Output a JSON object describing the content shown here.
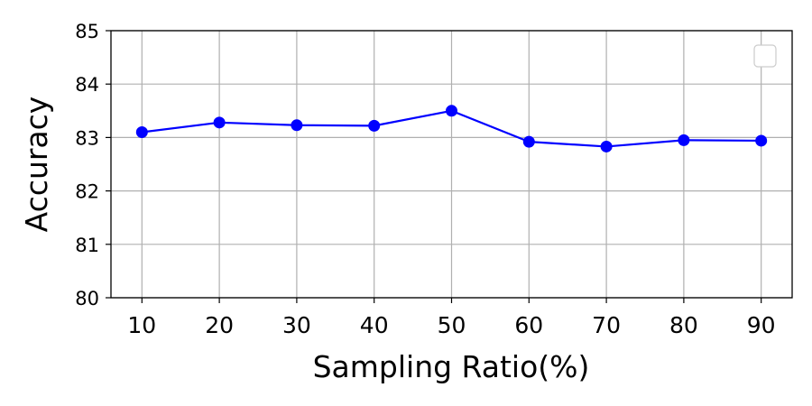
{
  "chart_data": {
    "type": "line",
    "title": "",
    "xlabel": "Sampling Ratio(%)",
    "ylabel": "Accuracy",
    "x": [
      10,
      20,
      30,
      40,
      50,
      60,
      70,
      80,
      90
    ],
    "series": [
      {
        "values": [
          83.1,
          83.28,
          83.23,
          83.22,
          83.5,
          82.92,
          82.83,
          82.95,
          82.94
        ],
        "color": "#0000ff",
        "marker": "circle"
      }
    ],
    "xlim": [
      6,
      94
    ],
    "ylim": [
      80,
      85
    ],
    "xticks": [
      10,
      20,
      30,
      40,
      50,
      60,
      70,
      80,
      90
    ],
    "yticks": [
      80,
      81,
      82,
      83,
      84,
      85
    ],
    "grid": true,
    "legend": "top-right",
    "legend_entries": []
  }
}
